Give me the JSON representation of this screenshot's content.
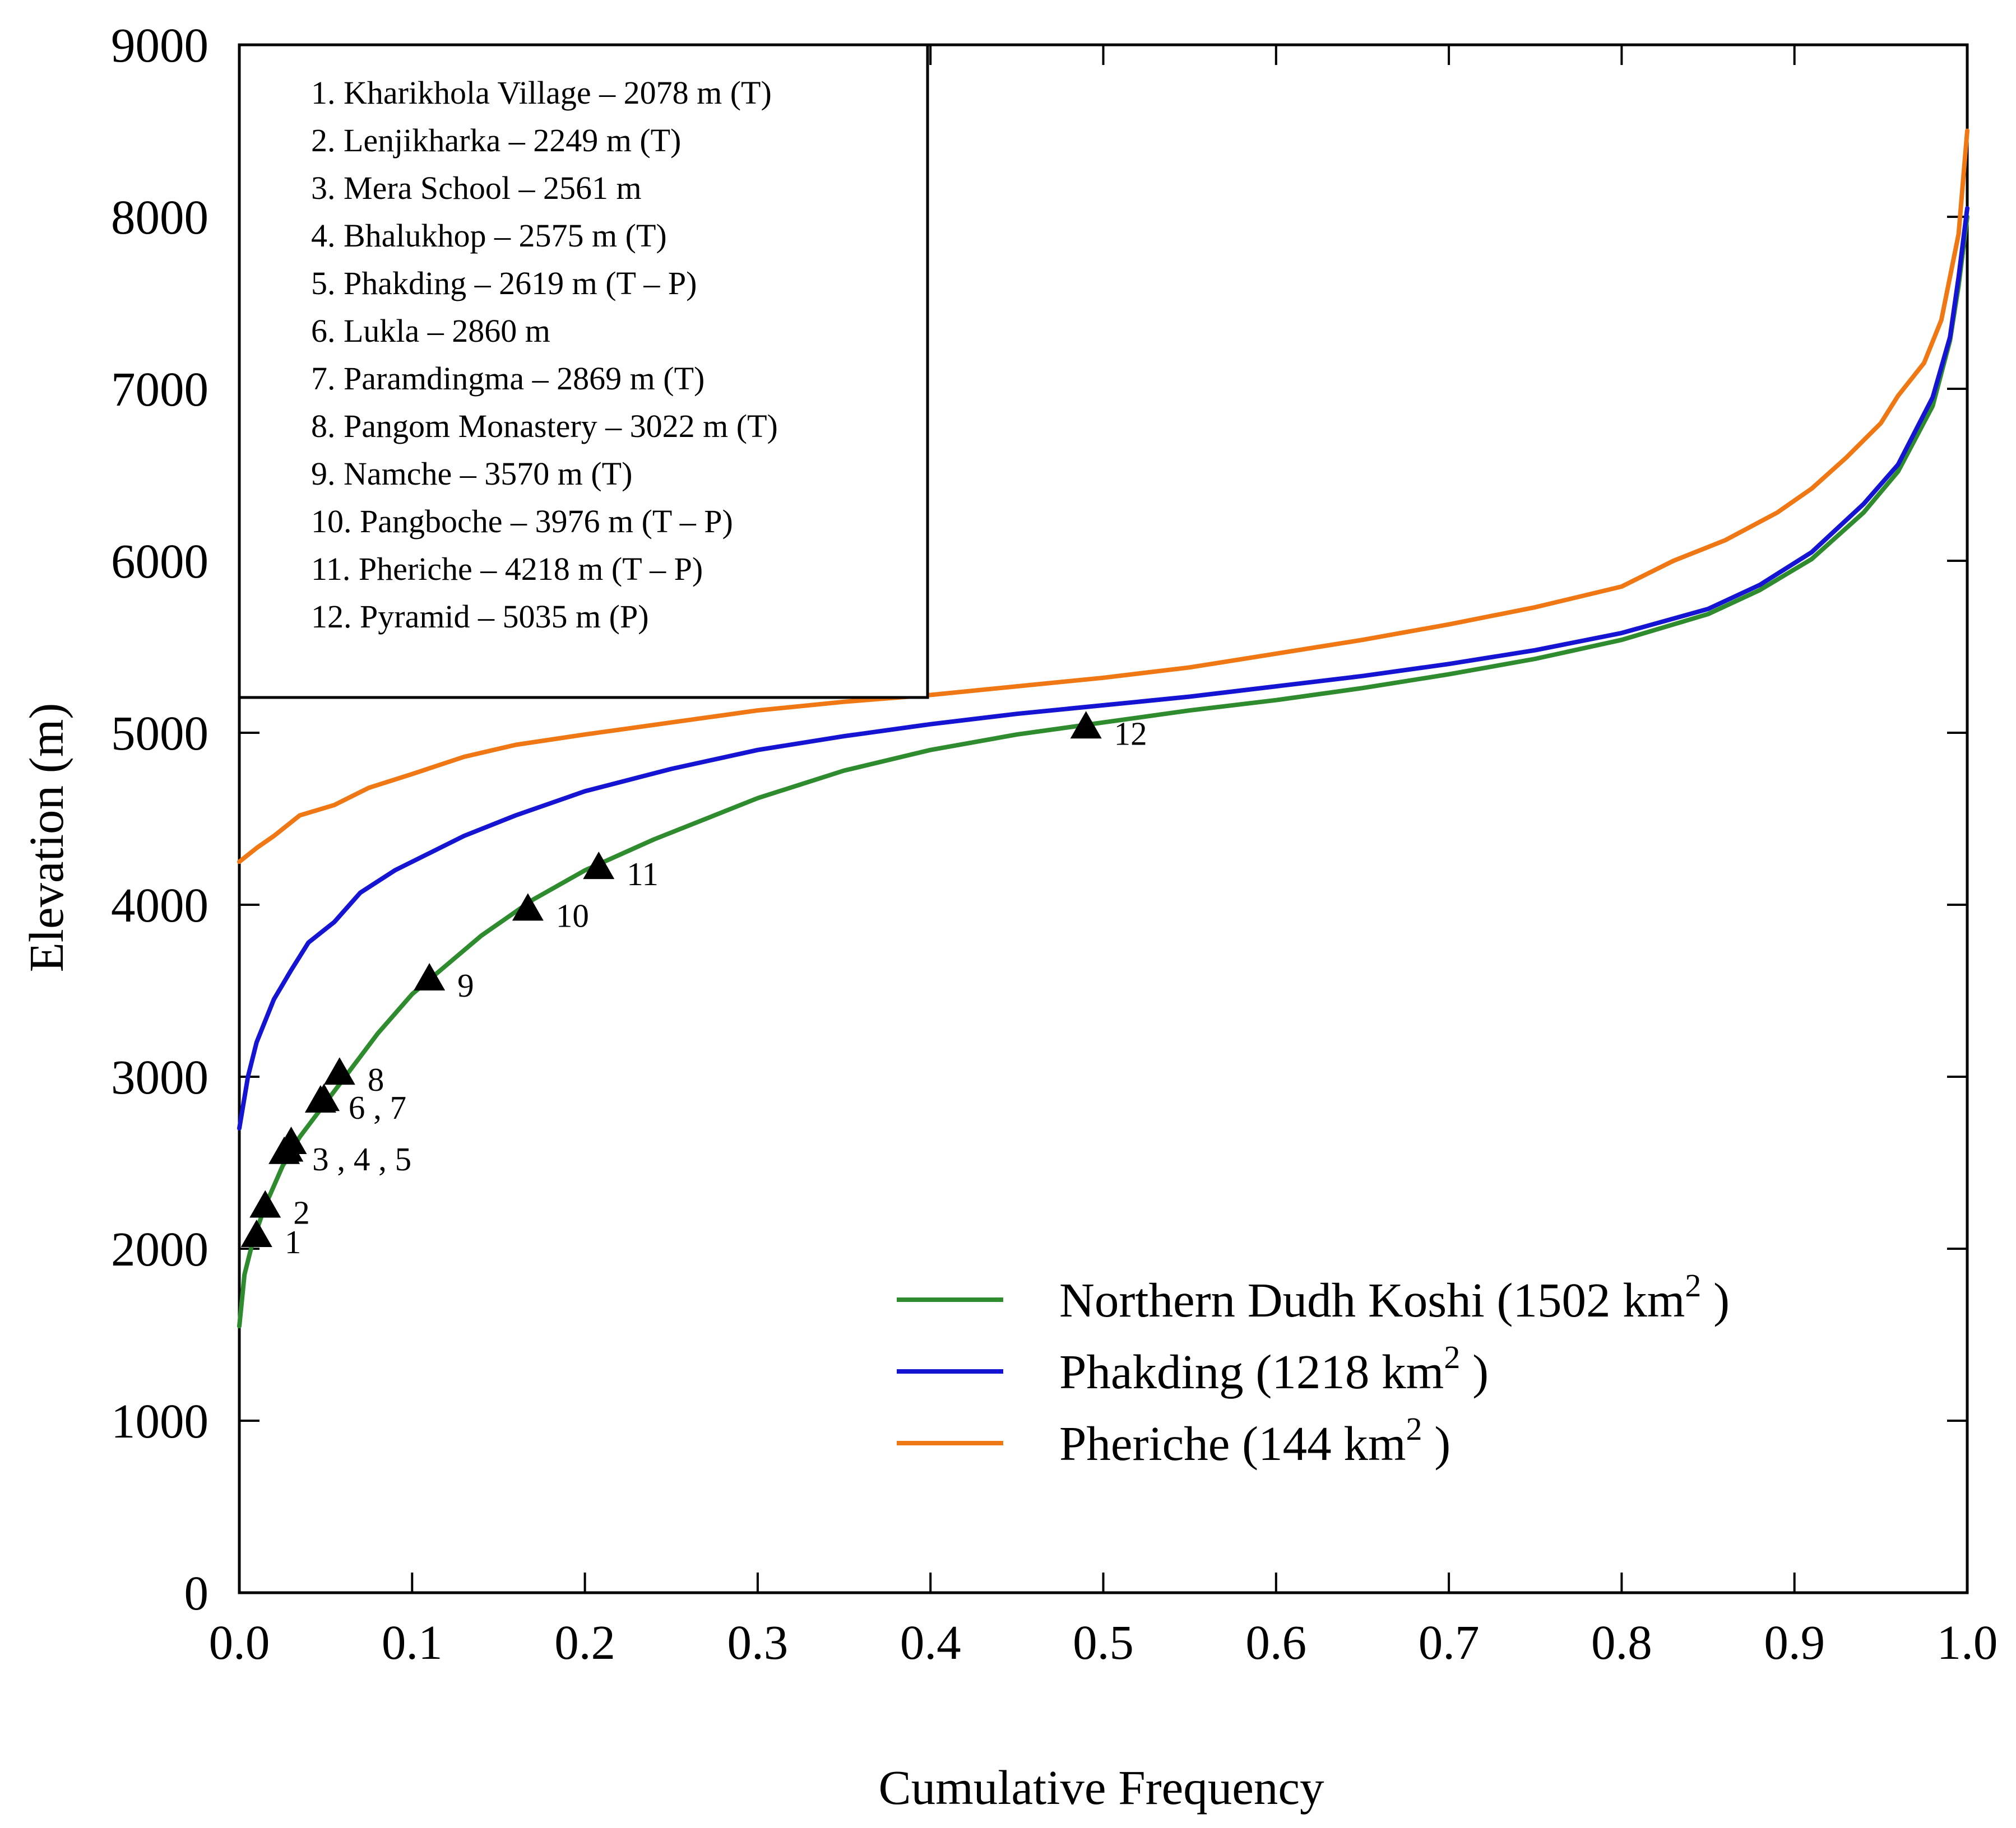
{
  "chart_data": {
    "type": "line",
    "title": "",
    "xlabel": "Cumulative Frequency",
    "ylabel": "Elevation (m)",
    "xlim": [
      0.0,
      1.0
    ],
    "ylim": [
      0,
      9000
    ],
    "x_ticks": [
      "0.0",
      "0.1",
      "0.2",
      "0.3",
      "0.4",
      "0.5",
      "0.6",
      "0.7",
      "0.8",
      "0.9",
      "1.0"
    ],
    "y_ticks": [
      "0",
      "1000",
      "2000",
      "3000",
      "4000",
      "5000",
      "6000",
      "7000",
      "8000",
      "9000"
    ],
    "grid": false,
    "legend_position": "bottom-right",
    "series": [
      {
        "name": "Northern Dudh Koshi",
        "area": "(1502 km",
        "sup": "2",
        "close": " )",
        "color": "#2e8b2e",
        "x": [
          0.0,
          0.003,
          0.008,
          0.015,
          0.025,
          0.035,
          0.05,
          0.065,
          0.08,
          0.1,
          0.12,
          0.14,
          0.17,
          0.2,
          0.24,
          0.3,
          0.35,
          0.4,
          0.45,
          0.5,
          0.55,
          0.6,
          0.65,
          0.7,
          0.75,
          0.8,
          0.85,
          0.88,
          0.91,
          0.94,
          0.96,
          0.98,
          0.99,
          0.995,
          1.0
        ],
        "y": [
          1550,
          1850,
          2050,
          2250,
          2480,
          2650,
          2850,
          3050,
          3250,
          3480,
          3650,
          3820,
          4030,
          4200,
          4380,
          4620,
          4780,
          4900,
          4990,
          5060,
          5130,
          5190,
          5260,
          5340,
          5430,
          5540,
          5690,
          5830,
          6010,
          6280,
          6520,
          6900,
          7280,
          7600,
          8000
        ]
      },
      {
        "name": "Phakding",
        "area": "(1218 km",
        "sup": "2",
        "close": " )",
        "color": "#1414d2",
        "x": [
          0.0,
          0.005,
          0.01,
          0.02,
          0.03,
          0.04,
          0.055,
          0.07,
          0.09,
          0.11,
          0.13,
          0.16,
          0.2,
          0.25,
          0.3,
          0.35,
          0.4,
          0.45,
          0.5,
          0.55,
          0.6,
          0.65,
          0.7,
          0.75,
          0.8,
          0.85,
          0.88,
          0.91,
          0.94,
          0.96,
          0.98,
          0.99,
          0.995,
          1.0
        ],
        "y": [
          2700,
          3000,
          3200,
          3450,
          3620,
          3780,
          3900,
          4070,
          4200,
          4300,
          4400,
          4520,
          4660,
          4790,
          4900,
          4980,
          5050,
          5110,
          5160,
          5210,
          5270,
          5330,
          5400,
          5480,
          5580,
          5720,
          5860,
          6050,
          6330,
          6560,
          6950,
          7300,
          7650,
          8050
        ]
      },
      {
        "name": "Pheriche",
        "area": "(144 km",
        "sup": "2",
        "close": " )",
        "color": "#f07814",
        "x": [
          0.0,
          0.01,
          0.02,
          0.035,
          0.055,
          0.075,
          0.1,
          0.13,
          0.16,
          0.2,
          0.25,
          0.3,
          0.35,
          0.4,
          0.45,
          0.5,
          0.55,
          0.6,
          0.65,
          0.7,
          0.75,
          0.8,
          0.83,
          0.86,
          0.89,
          0.91,
          0.93,
          0.95,
          0.96,
          0.975,
          0.985,
          0.995,
          1.0
        ],
        "y": [
          4250,
          4330,
          4400,
          4520,
          4580,
          4680,
          4760,
          4860,
          4930,
          4990,
          5060,
          5130,
          5180,
          5220,
          5270,
          5320,
          5380,
          5460,
          5540,
          5630,
          5730,
          5850,
          6000,
          6120,
          6280,
          6420,
          6600,
          6800,
          6960,
          7150,
          7400,
          7900,
          8500
        ]
      }
    ],
    "markers": [
      {
        "id": "1",
        "x": 0.01,
        "y": 2078,
        "label": "1"
      },
      {
        "id": "2",
        "x": 0.015,
        "y": 2249,
        "label": "2"
      },
      {
        "id": "3",
        "x": 0.026,
        "y": 2561,
        "label": "3 ,  4 ,  5"
      },
      {
        "id": "4",
        "x": 0.028,
        "y": 2575,
        "label": ""
      },
      {
        "id": "5",
        "x": 0.03,
        "y": 2619,
        "label": ""
      },
      {
        "id": "6",
        "x": 0.047,
        "y": 2860,
        "label": "6 ,  7"
      },
      {
        "id": "7",
        "x": 0.049,
        "y": 2869,
        "label": ""
      },
      {
        "id": "8",
        "x": 0.058,
        "y": 3022,
        "label": "8"
      },
      {
        "id": "9",
        "x": 0.11,
        "y": 3570,
        "label": "9"
      },
      {
        "id": "10",
        "x": 0.167,
        "y": 3976,
        "label": "10"
      },
      {
        "id": "11",
        "x": 0.208,
        "y": 4218,
        "label": "11"
      },
      {
        "id": "12",
        "x": 0.49,
        "y": 5035,
        "label": "12"
      }
    ],
    "site_list": [
      "1. Kharikhola Village – 2078 m (T)",
      "2. Lenjikharka – 2249 m (T)",
      "3. Mera School – 2561 m",
      "4. Bhalukhop – 2575 m (T)",
      "5. Phakding – 2619 m (T – P)",
      "6. Lukla – 2860 m",
      "7. Paramdingma – 2869 m (T)",
      "8. Pangom Monastery – 3022 m (T)",
      "9. Namche – 3570 m (T)",
      "10. Pangboche – 3976 m (T – P)",
      "11. Pheriche – 4218 m (T – P)",
      "12. Pyramid – 5035 m (P)"
    ]
  }
}
